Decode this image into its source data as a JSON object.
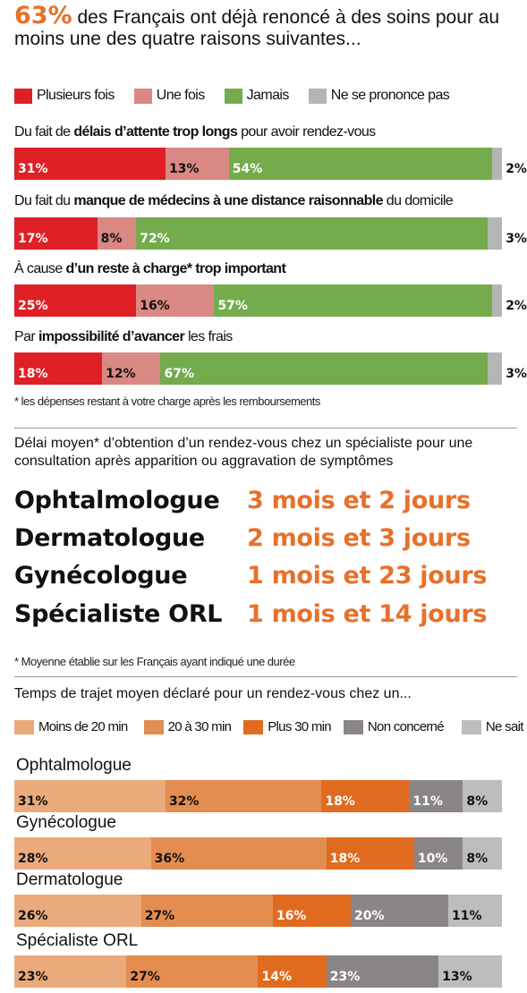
{
  "headline": {
    "pct": "63%",
    "text": " des Français ont déjà renoncé à des soins pour au moins une des quatre raisons suivantes..."
  },
  "colors": {
    "plusieurs": "#df2027",
    "une_fois": "#d98883",
    "jamais": "#74ab4c",
    "nsp": "#b5b5b5",
    "moins20": "#ebaa7c",
    "t20a30": "#e38d50",
    "plus30": "#e06b1f",
    "non_concerne": "#8a8685",
    "ne_sait_pas": "#bdbdbd",
    "accent": "#e8702a"
  },
  "legend1": [
    {
      "label": "Plusieurs fois",
      "color": "#df2027"
    },
    {
      "label": "Une fois",
      "color": "#d98883"
    },
    {
      "label": "Jamais",
      "color": "#74ab4c"
    },
    {
      "label": "Ne se prononce pas",
      "color": "#b5b5b5"
    }
  ],
  "questions": [
    {
      "pre": "Du fait de ",
      "bold": "délais d’attente trop longs",
      "post": " pour avoir rendez-vous"
    },
    {
      "pre": "Du fait du ",
      "bold": "manque de médecins à une distance raisonnable",
      "post": " du domicile"
    },
    {
      "pre": "À cause ",
      "bold": "d’un reste à charge* trop important",
      "post": ""
    },
    {
      "pre": "Par ",
      "bold": "impossibilité d’avancer",
      "post": " les frais"
    }
  ],
  "footnote1": "* les dépenses restant à votre charge après les remboursements",
  "section2_title": "Délai moyen* d’obtention d’un rendez-vous chez un spécialiste pour une consultation après apparition ou aggravation de symptômes",
  "specialists": [
    {
      "name": "Ophtalmologue",
      "delay": "3 mois et 2 jours"
    },
    {
      "name": "Dermatologue",
      "delay": "2 mois et 3 jours"
    },
    {
      "name": "Gynécologue",
      "delay": "1 mois et 23 jours"
    },
    {
      "name": "Spécialiste ORL",
      "delay": "1 mois et 14 jours"
    }
  ],
  "footnote2": "* Moyenne établie sur les Français ayant indiqué une durée",
  "section3_title": "Temps de trajet moyen déclaré pour un rendez-vous chez un...",
  "legend2": [
    {
      "label": "Moins de 20 min",
      "color": "#ebaa7c"
    },
    {
      "label": "20 à 30 min",
      "color": "#e38d50"
    },
    {
      "label": "Plus 30 min",
      "color": "#e06b1f"
    },
    {
      "label": "Non concerné",
      "color": "#8a8685"
    },
    {
      "label": "Ne sait pas",
      "color": "#bdbdbd"
    }
  ],
  "chart_data": [
    {
      "type": "bar",
      "stacked": true,
      "orientation": "horizontal",
      "categories": [
        "Du fait de délais d’attente trop longs pour avoir rendez-vous",
        "Du fait du manque de médecins à une distance raisonnable du domicile",
        "À cause d’un reste à charge* trop important",
        "Par impossibilité d’avancer les frais"
      ],
      "series": [
        {
          "name": "Plusieurs fois",
          "values": [
            31,
            17,
            25,
            18
          ]
        },
        {
          "name": "Une fois",
          "values": [
            13,
            8,
            16,
            12
          ]
        },
        {
          "name": "Jamais",
          "values": [
            54,
            72,
            57,
            67
          ]
        },
        {
          "name": "Ne se prononce pas",
          "values": [
            2,
            3,
            2,
            3
          ]
        }
      ],
      "unit": "%",
      "legend": "top"
    },
    {
      "type": "bar",
      "stacked": true,
      "orientation": "horizontal",
      "categories": [
        "Ophtalmologue",
        "Gynécologue",
        "Dermatologue",
        "Spécialiste ORL"
      ],
      "series": [
        {
          "name": "Moins de 20 min",
          "values": [
            31,
            28,
            26,
            23
          ]
        },
        {
          "name": "20 à 30 min",
          "values": [
            32,
            36,
            27,
            27
          ]
        },
        {
          "name": "Plus 30 min",
          "values": [
            18,
            18,
            16,
            14
          ]
        },
        {
          "name": "Non concerné",
          "values": [
            11,
            10,
            20,
            23
          ]
        },
        {
          "name": "Ne sait pas",
          "values": [
            8,
            8,
            11,
            13
          ]
        }
      ],
      "unit": "%",
      "legend": "top"
    }
  ]
}
